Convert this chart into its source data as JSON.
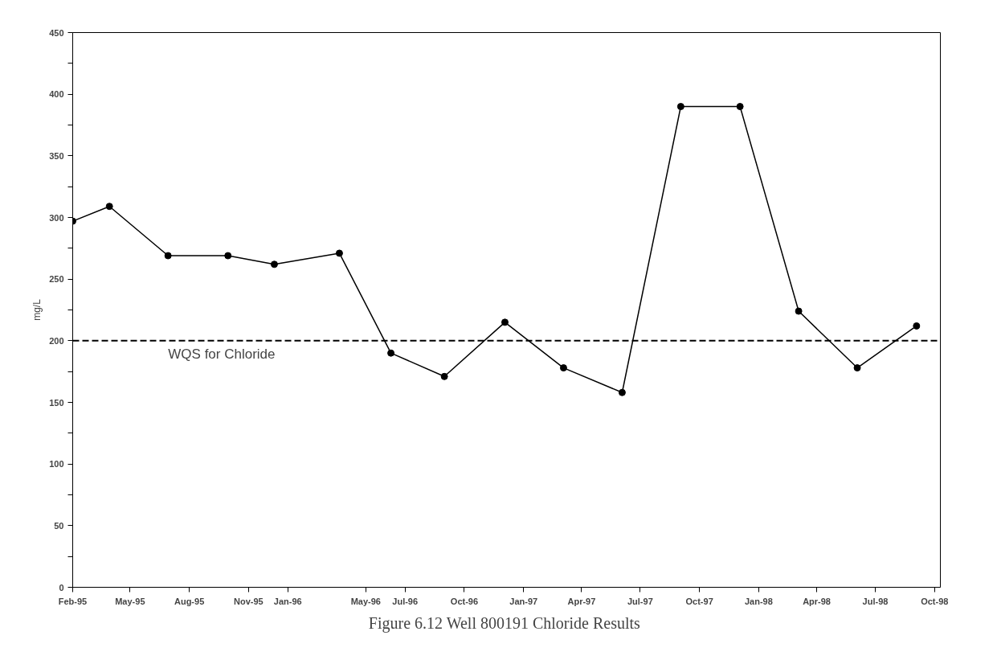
{
  "chart_data": {
    "type": "line",
    "title": "Figure 6.12  Well 800191 Chloride Results",
    "ylabel": "mg/L",
    "x": [
      "1995-02-01",
      "1995-03-30",
      "1995-06-29",
      "1995-09-30",
      "1995-12-11",
      "1996-03-21",
      "1996-06-09",
      "1996-08-31",
      "1996-12-03",
      "1997-03-04",
      "1997-06-03",
      "1997-09-02",
      "1997-12-03",
      "1998-03-04",
      "1998-06-03",
      "1998-09-03"
    ],
    "series": [
      {
        "color": "#000000",
        "values": [
          297,
          309,
          269,
          269,
          262,
          271,
          190,
          171,
          215,
          178,
          158,
          390,
          390,
          224,
          178,
          212
        ]
      }
    ],
    "xlim": [
      "1995-02-01",
      "1998-10-10"
    ],
    "xticks": [
      {
        "value": "1995-02-01",
        "label": "Feb-95"
      },
      {
        "value": "1995-05-01",
        "label": "May-95"
      },
      {
        "value": "1995-08-01",
        "label": "Aug-95"
      },
      {
        "value": "1995-11-01",
        "label": "Nov-95"
      },
      {
        "value": "1996-01-01",
        "label": "Jan-96"
      },
      {
        "value": "1996-05-01",
        "label": "May-96"
      },
      {
        "value": "1996-07-01",
        "label": "Jul-96"
      },
      {
        "value": "1996-10-01",
        "label": "Oct-96"
      },
      {
        "value": "1997-01-01",
        "label": "Jan-97"
      },
      {
        "value": "1997-04-01",
        "label": "Apr-97"
      },
      {
        "value": "1997-07-01",
        "label": "Jul-97"
      },
      {
        "value": "1997-10-01",
        "label": "Oct-97"
      },
      {
        "value": "1998-01-01",
        "label": "Jan-98"
      },
      {
        "value": "1998-04-01",
        "label": "Apr-98"
      },
      {
        "value": "1998-07-01",
        "label": "Jul-98"
      },
      {
        "value": "1998-10-01",
        "label": "Oct-98"
      }
    ],
    "ylim": [
      0,
      450
    ],
    "yticks": [
      0,
      {
        "value": 25,
        "label": null
      },
      50,
      {
        "value": 75,
        "label": null
      },
      100,
      {
        "value": 125,
        "label": null
      },
      150,
      {
        "value": 175,
        "label": null
      },
      200,
      {
        "value": 225,
        "label": null
      },
      250,
      {
        "value": 275,
        "label": null
      },
      300,
      {
        "value": 325,
        "label": null
      },
      350,
      {
        "value": 375,
        "label": null
      },
      400,
      {
        "value": 425,
        "label": null
      },
      450
    ],
    "ref_lines": [
      {
        "axis": "y",
        "value": 200,
        "label": "WQS for Chloride",
        "color": "#000000",
        "line_style": "dashed"
      }
    ],
    "marker": "circle",
    "line_style": "solid",
    "grid": false
  }
}
